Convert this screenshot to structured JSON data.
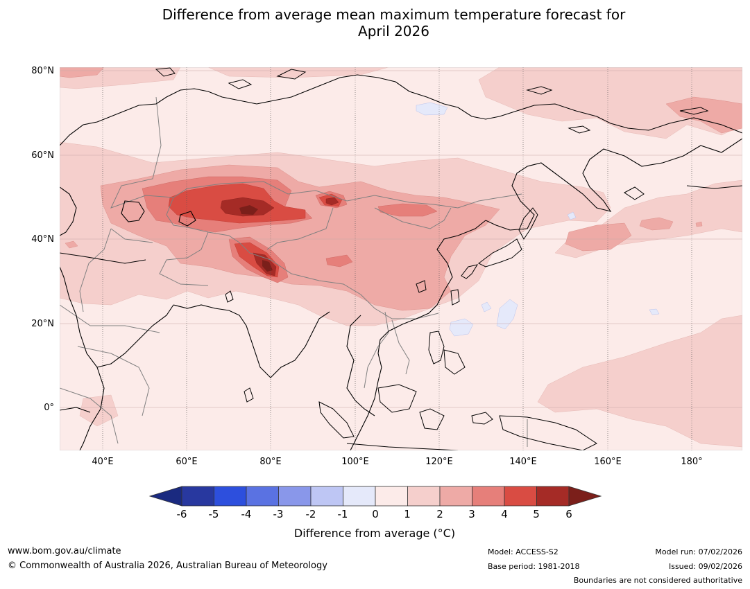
{
  "title": {
    "line1": "Difference from average mean maximum temperature forecast for",
    "line2": "April 2026"
  },
  "map": {
    "lat_labels": [
      "80°N",
      "60°N",
      "40°N",
      "20°N",
      "0°"
    ],
    "lon_labels": [
      "40°E",
      "60°E",
      "80°E",
      "100°E",
      "120°E",
      "140°E",
      "160°E",
      "180°"
    ]
  },
  "colorbar": {
    "ticks": [
      "-6",
      "-5",
      "-4",
      "-3",
      "-2",
      "-1",
      "0",
      "1",
      "2",
      "3",
      "4",
      "5",
      "6"
    ],
    "colors": [
      "#28389f",
      "#2d4fdd",
      "#5a72e2",
      "#8997ea",
      "#bec6f4",
      "#e5e9fa",
      "#fcebe9",
      "#f5cfcc",
      "#eeaaa6",
      "#e67f7a",
      "#d94c43",
      "#a52b26"
    ],
    "under_color": "#1a2a80",
    "over_color": "#7b1f1a",
    "title": "Difference from average (°C)"
  },
  "footer": {
    "url": "www.bom.gov.au/climate",
    "copyright": "© Commonwealth of Australia 2026, Australian Bureau of Meteorology",
    "model": "Model: ACCESS-S2",
    "base_period": "Base period: 1981-2018",
    "model_run": "Model run: 07/02/2026",
    "issued": "Issued: 09/02/2026",
    "boundaries": "Boundaries are not considered authoritative"
  }
}
